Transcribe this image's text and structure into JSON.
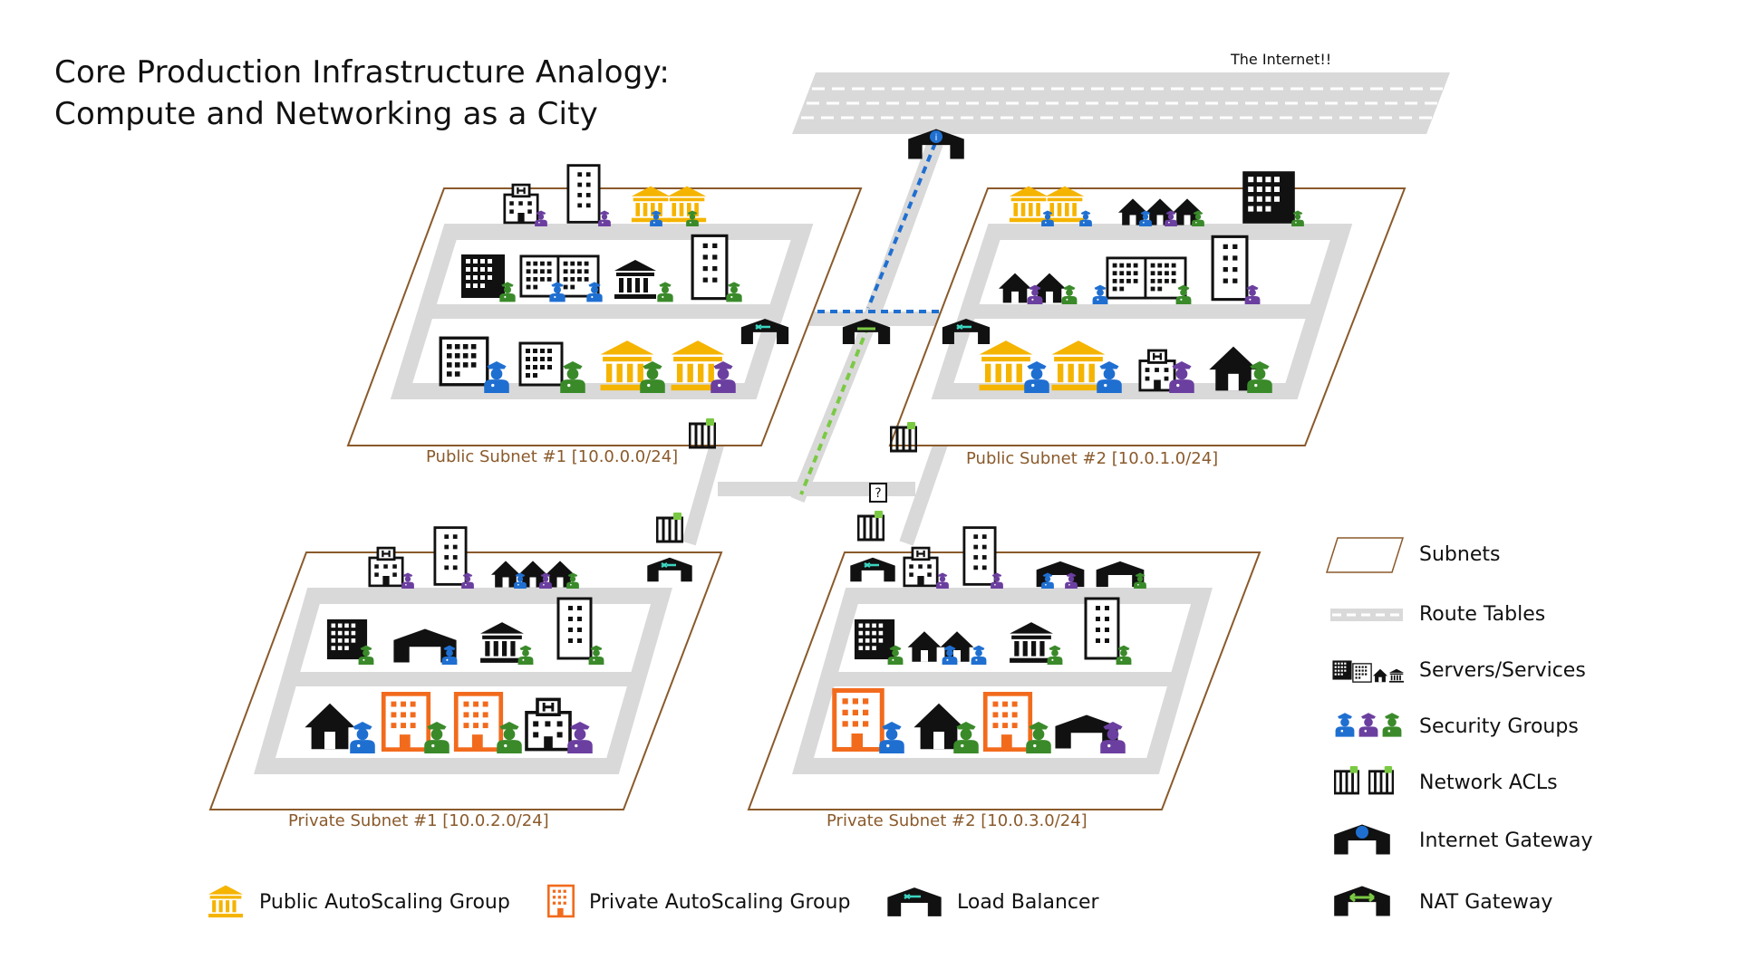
{
  "title": {
    "line1": "Core Production Infrastructure Analogy:",
    "line2": "Compute and Networking as a City"
  },
  "internet_label": "The Internet!!",
  "subnets": {
    "public1": "Public Subnet #1 [10.0.0.0/24]",
    "public2": "Public Subnet #2 [10.0.1.0/24]",
    "private1": "Private Subnet #1 [10.0.2.0/24]",
    "private2": "Private Subnet #2 [10.0.3.0/24]"
  },
  "legend_right": [
    {
      "label": "Subnets",
      "icon": "subnet-icon"
    },
    {
      "label": "Route Tables",
      "icon": "route-table-icon"
    },
    {
      "label": "Servers/Services",
      "icon": "buildings-icon"
    },
    {
      "label": "Security Groups",
      "icon": "guards-icon"
    },
    {
      "label": "Network ACLs",
      "icon": "gate-icon"
    },
    {
      "label": "Internet Gateway",
      "icon": "internet-gateway-icon"
    },
    {
      "label": "NAT Gateway",
      "icon": "nat-gateway-icon"
    }
  ],
  "legend_bottom": [
    {
      "label": "Public AutoScaling Group",
      "icon": "temple-icon"
    },
    {
      "label": "Private AutoScaling Group",
      "icon": "office-icon"
    },
    {
      "label": "Load Balancer",
      "icon": "load-balancer-icon"
    }
  ],
  "colors": {
    "subnet_border": "#8a5a2b",
    "road": "#d9d9d9",
    "public_asg": "#f5b400",
    "private_asg": "#f26b1d",
    "guard_blue": "#1f6fd1",
    "guard_purple": "#6b3fa0",
    "guard_green": "#3a8a2a",
    "igw_path": "#1f6fd1",
    "nat_path": "#7ac943"
  }
}
